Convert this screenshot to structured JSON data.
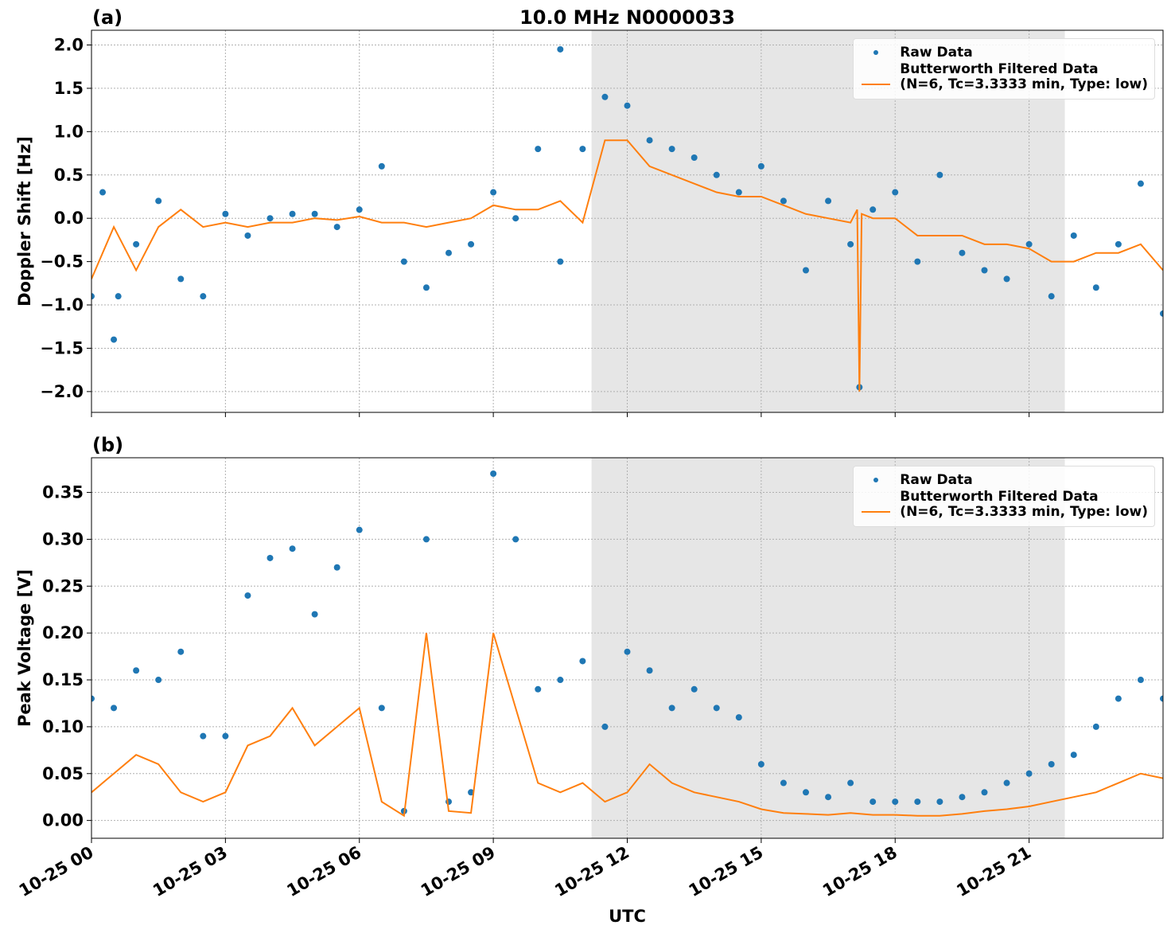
{
  "chart_data": [
    {
      "type": "line",
      "panel_label": "(a)",
      "title": "10.0 MHz N0000033",
      "ylabel": "Doppler Shift [Hz]",
      "xlim": [
        0,
        24
      ],
      "xticks": [
        0,
        3,
        6,
        9,
        12,
        15,
        18,
        21
      ],
      "shade": [
        11.2,
        21.8
      ],
      "ylim": [
        -2.24,
        2.17
      ],
      "yticks": [
        {
          "value": -2,
          "label": "−2.0"
        },
        {
          "value": -1.5,
          "label": "−1.5"
        },
        {
          "value": -1,
          "label": "−1.0"
        },
        {
          "value": -0.5,
          "label": "−0.5"
        },
        {
          "value": 0,
          "label": "0.0"
        },
        {
          "value": 0.5,
          "label": "0.5"
        },
        {
          "value": 1,
          "label": "1.0"
        },
        {
          "value": 1.5,
          "label": "1.5"
        },
        {
          "value": 2,
          "label": "2.0"
        }
      ],
      "grid": true,
      "legend": "upper right",
      "series": [
        {
          "name": "Raw Data",
          "style": "markers",
          "color": "#1f77b4",
          "x": [
            0,
            0.25,
            0.5,
            0.6,
            1,
            1.5,
            2,
            2.5,
            3,
            3.5,
            4,
            4.5,
            5,
            5.5,
            6,
            6.5,
            7,
            7.5,
            8,
            8.5,
            9,
            9.5,
            10,
            10.5,
            10.5,
            11,
            11.5,
            12,
            12.5,
            13,
            13.5,
            14,
            14.5,
            15,
            15.5,
            16,
            16.5,
            17,
            17.2,
            17.5,
            18,
            18.5,
            19,
            19.5,
            20,
            20.5,
            21,
            21.5,
            22,
            22.5,
            23,
            23.5,
            24
          ],
          "values": [
            -0.9,
            0.3,
            -1.4,
            -0.9,
            -0.3,
            0.2,
            -0.7,
            -0.9,
            0.05,
            -0.2,
            0.0,
            0.05,
            0.05,
            -0.1,
            0.1,
            0.6,
            -0.5,
            -0.8,
            -0.4,
            -0.3,
            0.3,
            0.0,
            0.8,
            1.95,
            -0.5,
            0.8,
            1.4,
            1.3,
            0.9,
            0.8,
            0.7,
            0.5,
            0.3,
            0.6,
            0.2,
            -0.6,
            0.2,
            -0.3,
            -1.95,
            0.1,
            0.3,
            -0.5,
            0.5,
            -0.4,
            -0.6,
            -0.7,
            -0.3,
            -0.9,
            -0.2,
            -0.8,
            -0.3,
            0.4,
            -1.1
          ]
        },
        {
          "name": "Butterworth Filtered Data\n(N=6, Tc=3.3333 min, Type: low)",
          "style": "line",
          "color": "#ff7f0e",
          "x": [
            0,
            0.5,
            1,
            1.5,
            2,
            2.5,
            3,
            3.5,
            4,
            4.5,
            5,
            5.5,
            6,
            6.5,
            7,
            7.5,
            8,
            8.5,
            9,
            9.5,
            10,
            10.5,
            11,
            11.5,
            12,
            12.5,
            13,
            13.5,
            14,
            14.5,
            15,
            15.5,
            16,
            16.5,
            17,
            17.15,
            17.2,
            17.25,
            17.5,
            18,
            18.5,
            19,
            19.5,
            20,
            20.5,
            21,
            21.5,
            22,
            22.5,
            23,
            23.5,
            24
          ],
          "values": [
            -0.7,
            -0.1,
            -0.6,
            -0.1,
            0.1,
            -0.1,
            -0.05,
            -0.1,
            -0.05,
            -0.05,
            0.0,
            -0.02,
            0.02,
            -0.05,
            -0.05,
            -0.1,
            -0.05,
            0.0,
            0.15,
            0.1,
            0.1,
            0.2,
            -0.05,
            0.9,
            0.9,
            0.6,
            0.5,
            0.4,
            0.3,
            0.25,
            0.25,
            0.15,
            0.05,
            0.0,
            -0.05,
            0.1,
            -2.0,
            0.05,
            0.0,
            0.0,
            -0.2,
            -0.2,
            -0.2,
            -0.3,
            -0.3,
            -0.35,
            -0.5,
            -0.5,
            -0.4,
            -0.4,
            -0.3,
            -0.6
          ]
        }
      ]
    },
    {
      "type": "line",
      "panel_label": "(b)",
      "ylabel": "Peak Voltage [V]",
      "xlabel": "UTC",
      "xlim": [
        0,
        24
      ],
      "xticks": [
        {
          "value": 0,
          "label": "10-25 00"
        },
        {
          "value": 3,
          "label": "10-25 03"
        },
        {
          "value": 6,
          "label": "10-25 06"
        },
        {
          "value": 9,
          "label": "10-25 09"
        },
        {
          "value": 12,
          "label": "10-25 12"
        },
        {
          "value": 15,
          "label": "10-25 15"
        },
        {
          "value": 18,
          "label": "10-25 18"
        },
        {
          "value": 21,
          "label": "10-25 21"
        }
      ],
      "shade": [
        11.2,
        21.8
      ],
      "ylim": [
        -0.019,
        0.387
      ],
      "yticks": [
        {
          "value": 0,
          "label": "0.00"
        },
        {
          "value": 0.05,
          "label": "0.05"
        },
        {
          "value": 0.1,
          "label": "0.10"
        },
        {
          "value": 0.15,
          "label": "0.15"
        },
        {
          "value": 0.2,
          "label": "0.20"
        },
        {
          "value": 0.25,
          "label": "0.25"
        },
        {
          "value": 0.3,
          "label": "0.30"
        },
        {
          "value": 0.35,
          "label": "0.35"
        }
      ],
      "grid": true,
      "legend": "upper right",
      "series": [
        {
          "name": "Raw Data",
          "style": "markers",
          "color": "#1f77b4",
          "x": [
            0,
            0.5,
            1,
            1.5,
            2,
            2.5,
            3,
            3.5,
            4,
            4.5,
            5,
            5.5,
            6,
            6.5,
            7,
            7.5,
            8,
            8.5,
            9,
            9.5,
            10,
            10.5,
            11,
            11.5,
            12,
            12.5,
            13,
            13.5,
            14,
            14.5,
            15,
            15.5,
            16,
            16.5,
            17,
            17.5,
            18,
            18.5,
            19,
            19.5,
            20,
            20.5,
            21,
            21.5,
            22,
            22.5,
            23,
            23.5,
            24
          ],
          "values": [
            0.13,
            0.12,
            0.16,
            0.15,
            0.18,
            0.09,
            0.09,
            0.24,
            0.28,
            0.29,
            0.22,
            0.27,
            0.31,
            0.12,
            0.01,
            0.3,
            0.02,
            0.03,
            0.37,
            0.3,
            0.14,
            0.15,
            0.17,
            0.1,
            0.18,
            0.16,
            0.12,
            0.14,
            0.12,
            0.11,
            0.06,
            0.04,
            0.03,
            0.025,
            0.04,
            0.02,
            0.02,
            0.02,
            0.02,
            0.025,
            0.03,
            0.04,
            0.05,
            0.06,
            0.07,
            0.1,
            0.13,
            0.15,
            0.13
          ]
        },
        {
          "name": "Butterworth Filtered Data\n(N=6, Tc=3.3333 min, Type: low)",
          "style": "line",
          "color": "#ff7f0e",
          "x": [
            0,
            0.5,
            1,
            1.5,
            2,
            2.5,
            3,
            3.5,
            4,
            4.5,
            5,
            5.5,
            6,
            6.5,
            7,
            7.5,
            8,
            8.5,
            9,
            9.5,
            10,
            10.5,
            11,
            11.5,
            12,
            12.5,
            13,
            13.5,
            14,
            14.5,
            15,
            15.5,
            16,
            16.5,
            17,
            17.5,
            18,
            18.5,
            19,
            19.5,
            20,
            20.5,
            21,
            21.5,
            22,
            22.5,
            23,
            23.5,
            24
          ],
          "values": [
            0.03,
            0.05,
            0.07,
            0.06,
            0.03,
            0.02,
            0.03,
            0.08,
            0.09,
            0.12,
            0.08,
            0.1,
            0.12,
            0.02,
            0.005,
            0.2,
            0.01,
            0.008,
            0.2,
            0.12,
            0.04,
            0.03,
            0.04,
            0.02,
            0.03,
            0.06,
            0.04,
            0.03,
            0.025,
            0.02,
            0.012,
            0.008,
            0.007,
            0.006,
            0.008,
            0.006,
            0.006,
            0.005,
            0.005,
            0.007,
            0.01,
            0.012,
            0.015,
            0.02,
            0.025,
            0.03,
            0.04,
            0.05,
            0.045
          ]
        }
      ]
    }
  ]
}
